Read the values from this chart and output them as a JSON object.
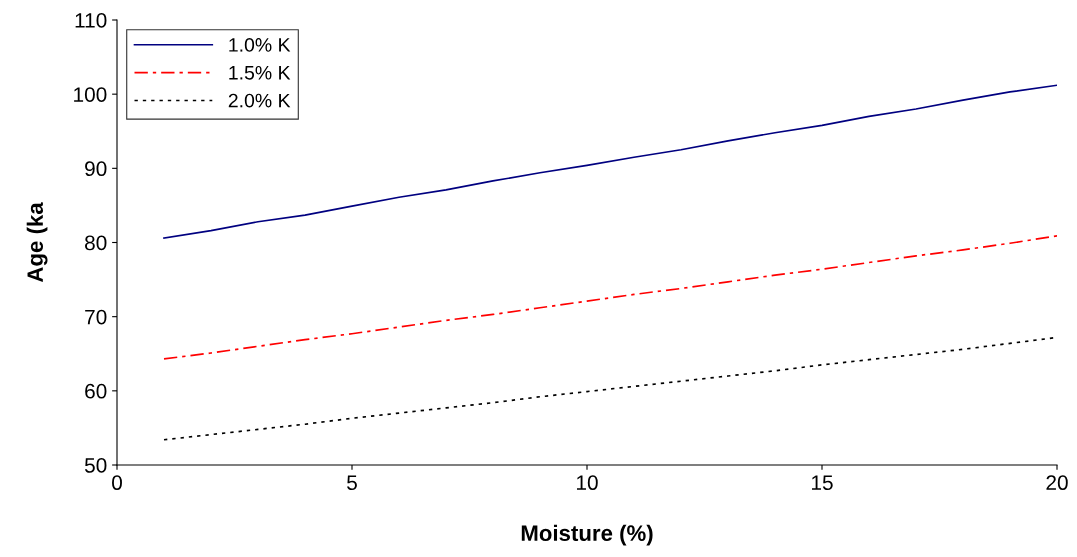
{
  "chart_data": {
    "type": "line",
    "xlabel": "Moisture (%)",
    "ylabel": "Age (ka",
    "x": [
      1,
      2,
      3,
      4,
      5,
      6,
      7,
      8,
      9,
      10,
      11,
      12,
      13,
      14,
      15,
      16,
      17,
      18,
      19,
      20
    ],
    "xlim": [
      0,
      20
    ],
    "xticks": [
      0,
      5,
      10,
      15,
      20
    ],
    "ylim": [
      50,
      110
    ],
    "yticks": [
      50,
      60,
      70,
      80,
      90,
      100,
      110
    ],
    "grid": false,
    "legend": "top left",
    "marker": "none",
    "series": [
      {
        "name": "1.0% K",
        "color": "#000080",
        "line_style": "solid",
        "values": [
          80.6,
          81.6,
          82.8,
          83.7,
          84.9,
          86.1,
          87.1,
          88.3,
          89.4,
          90.4,
          91.5,
          92.5,
          93.7,
          94.8,
          95.8,
          97.0,
          98.0,
          99.2,
          100.3,
          101.2
        ]
      },
      {
        "name": "1.5% K",
        "color": "#ff0000",
        "line_style": "dashdot",
        "values": [
          64.3,
          65.1,
          66.0,
          66.9,
          67.7,
          68.6,
          69.5,
          70.3,
          71.2,
          72.1,
          73.0,
          73.8,
          74.7,
          75.6,
          76.4,
          77.3,
          78.2,
          79.0,
          79.9,
          80.9
        ]
      },
      {
        "name": "2.0% K",
        "color": "#000000",
        "line_style": "dotted",
        "values": [
          53.4,
          54.1,
          54.8,
          55.5,
          56.3,
          57.0,
          57.7,
          58.4,
          59.2,
          59.9,
          60.6,
          61.3,
          62.0,
          62.7,
          63.5,
          64.2,
          64.9,
          65.6,
          66.4,
          67.2
        ]
      }
    ]
  }
}
